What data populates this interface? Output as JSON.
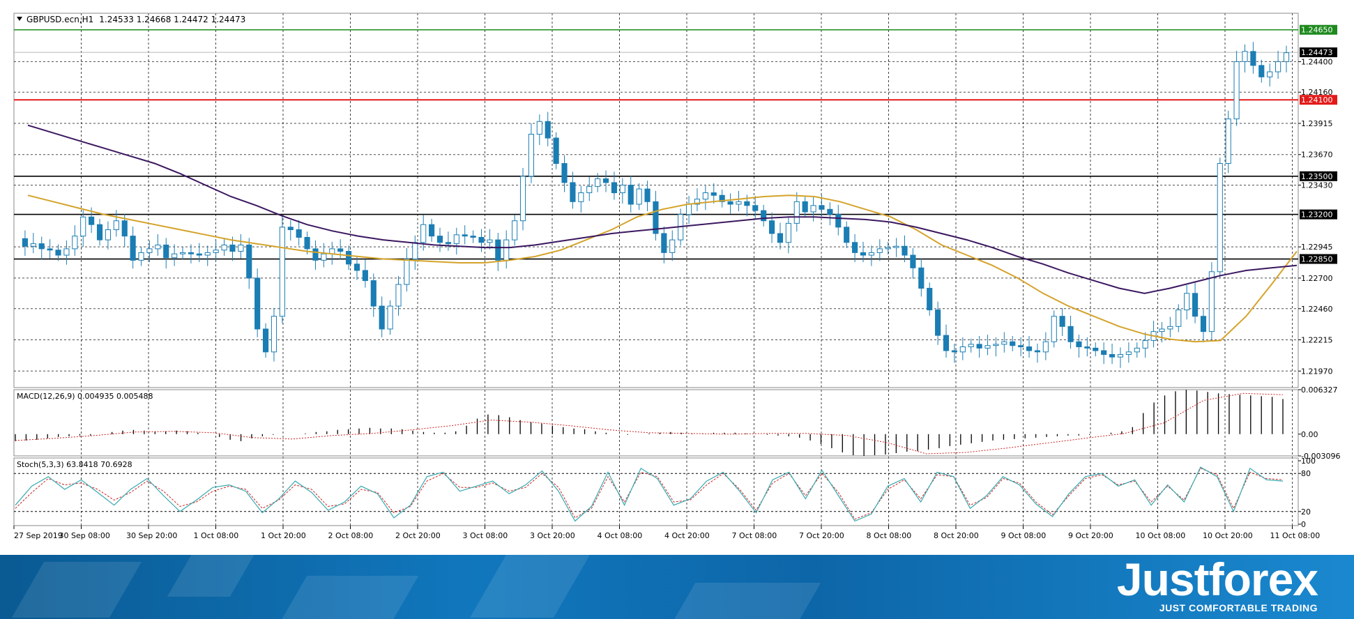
{
  "header": {
    "symbol": "GBPUSD.ecn,H1",
    "ohlc": "1.24533 1.24668 1.24472 1.24473"
  },
  "macd": {
    "label": "MACD(12,26,9) 0.004935 0.005488"
  },
  "stoch": {
    "label": "Stoch(5,3,3) 63.8418 70.6928"
  },
  "brand": {
    "name": "Justforex",
    "tagline": "JUST COMFORTABLE TRADING"
  },
  "colors": {
    "candle": "#1a7db3",
    "ma_fast": "#d4a32a",
    "ma_slow": "#3b1760",
    "hline": "#000000",
    "resistance": "#e41a1a",
    "green_line": "#1e8a1e",
    "stoch_main": "#37aab0",
    "stoch_signal": "#cc2222",
    "macd_signal": "#cc2222"
  },
  "chart_data": [
    {
      "type": "candlestick",
      "symbol": "GBPUSD",
      "timeframe": "H1",
      "price_axis": [
        "1.24400",
        "1.24160",
        "1.23915",
        "1.23670",
        "1.23430",
        "1.22945",
        "1.22700",
        "1.22460",
        "1.22215",
        "1.21970"
      ],
      "ylim": [
        1.2184,
        1.2478
      ],
      "time_axis": [
        "27 Sep 2019",
        "30 Sep 08:00",
        "30 Sep 20:00",
        "1 Oct 08:00",
        "1 Oct 20:00",
        "2 Oct 08:00",
        "2 Oct 20:00",
        "3 Oct 08:00",
        "3 Oct 20:00",
        "4 Oct 08:00",
        "4 Oct 20:00",
        "7 Oct 08:00",
        "7 Oct 20:00",
        "8 Oct 08:00",
        "8 Oct 20:00",
        "9 Oct 08:00",
        "9 Oct 20:00",
        "10 Oct 08:00",
        "10 Oct 20:00",
        "11 Oct 08:00"
      ],
      "horizontal_levels": [
        {
          "value": "1.24650",
          "price": 1.2465,
          "color": "green"
        },
        {
          "value": "1.24473",
          "price": 1.24473,
          "color": "current"
        },
        {
          "value": "1.24100",
          "price": 1.241,
          "color": "red"
        },
        {
          "value": "1.23500",
          "price": 1.235,
          "color": "black"
        },
        {
          "value": "1.23200",
          "price": 1.232,
          "color": "black"
        },
        {
          "value": "1.22850",
          "price": 1.2285,
          "color": "black"
        }
      ],
      "close_path": [
        1.2301,
        1.2295,
        1.2297,
        1.2293,
        1.2292,
        1.2288,
        1.2293,
        1.2303,
        1.2318,
        1.2312,
        1.23,
        1.2308,
        1.2315,
        1.2303,
        1.2284,
        1.229,
        1.2293,
        1.2296,
        1.2286,
        1.2289,
        1.229,
        1.2289,
        1.2288,
        1.229,
        1.2292,
        1.2296,
        1.2291,
        1.2296,
        1.227,
        1.223,
        1.2212,
        1.224,
        1.231,
        1.2308,
        1.2302,
        1.2293,
        1.2284,
        1.2289,
        1.2293,
        1.2291,
        1.2281,
        1.2276,
        1.2268,
        1.2248,
        1.223,
        1.2248,
        1.2265,
        1.2285,
        1.2298,
        1.2312,
        1.2303,
        1.2298,
        1.2297,
        1.2304,
        1.2303,
        1.2302,
        1.2298,
        1.23,
        1.2284,
        1.23,
        1.2315,
        1.235,
        1.2383,
        1.2393,
        1.238,
        1.236,
        1.2345,
        1.233,
        1.2337,
        1.2342,
        1.2348,
        1.2345,
        1.2337,
        1.2343,
        1.2328,
        1.234,
        1.233,
        1.2305,
        1.229,
        1.23,
        1.232,
        1.2328,
        1.2332,
        1.2337,
        1.2335,
        1.233,
        1.2328,
        1.233,
        1.2327,
        1.2323,
        1.2315,
        1.2305,
        1.2298,
        1.2313,
        1.233,
        1.2322,
        1.2327,
        1.2324,
        1.232,
        1.231,
        1.2298,
        1.229,
        1.2288,
        1.229,
        1.2293,
        1.2294,
        1.2295,
        1.2288,
        1.2278,
        1.2262,
        1.2245,
        1.2225,
        1.2213,
        1.2212,
        1.2216,
        1.2218,
        1.2215,
        1.2217,
        1.2218,
        1.222,
        1.2217,
        1.2216,
        1.2213,
        1.2212,
        1.222,
        1.224,
        1.2232,
        1.222,
        1.2216,
        1.2215,
        1.2213,
        1.221,
        1.2208,
        1.221,
        1.2212,
        1.2215,
        1.2221,
        1.2228,
        1.223,
        1.2232,
        1.2245,
        1.2258,
        1.224,
        1.2228,
        1.2275,
        1.236,
        1.2395,
        1.244,
        1.2448,
        1.2437,
        1.2428,
        1.2432,
        1.244,
        1.2447
      ],
      "moving_averages": [
        {
          "color": "fast",
          "path": [
            1.2335,
            1.233,
            1.2325,
            1.232,
            1.2316,
            1.2312,
            1.2308,
            1.2304,
            1.23,
            1.2297,
            1.2294,
            1.2291,
            1.2289,
            1.2287,
            1.2285,
            1.2284,
            1.2283,
            1.2282,
            1.2282,
            1.2284,
            1.2287,
            1.2292,
            1.23,
            1.2308,
            1.2318,
            1.2324,
            1.2328,
            1.233,
            1.2332,
            1.2334,
            1.2335,
            1.2334,
            1.233,
            1.2324,
            1.2318,
            1.2308,
            1.2296,
            1.2288,
            1.228,
            1.227,
            1.2258,
            1.2248,
            1.224,
            1.2232,
            1.2226,
            1.2222,
            1.222,
            1.2221,
            1.224,
            1.2265,
            1.2291
          ]
        },
        {
          "color": "slow",
          "path": [
            1.239,
            1.2384,
            1.2378,
            1.2372,
            1.2366,
            1.236,
            1.2352,
            1.2343,
            1.2334,
            1.2327,
            1.2319,
            1.2312,
            1.2307,
            1.2303,
            1.23,
            1.2298,
            1.2296,
            1.2295,
            1.2294,
            1.2294,
            1.2296,
            1.2299,
            1.2302,
            1.2305,
            1.2307,
            1.2309,
            1.2311,
            1.2313,
            1.2315,
            1.2317,
            1.2318,
            1.2318,
            1.2317,
            1.2316,
            1.2314,
            1.231,
            1.2305,
            1.23,
            1.2294,
            1.2287,
            1.2281,
            1.2274,
            1.2268,
            1.2262,
            1.2258,
            1.2262,
            1.2267,
            1.2272,
            1.2276,
            1.2278,
            1.228
          ]
        }
      ]
    },
    {
      "type": "bar",
      "name": "MACD(12,26,9)",
      "axis_labels": [
        "0.006327",
        "0.00",
        "-0.003096"
      ],
      "ylim": [
        -0.003096,
        0.006327
      ],
      "values": [
        -0.001,
        -0.0009,
        -0.0008,
        -0.0006,
        -0.0004,
        -0.0003,
        -0.0002,
        -0.0002,
        0.0,
        0.0003,
        0.0005,
        0.0006,
        0.0005,
        0.0004,
        0.0004,
        0.0005,
        0.0004,
        0.0002,
        0.0,
        -0.0004,
        -0.0008,
        -0.001,
        -0.0006,
        -0.0003,
        -0.0001,
        0.0,
        0.0,
        0.0001,
        0.0003,
        0.0004,
        0.0006,
        0.0007,
        0.0008,
        0.0009,
        0.0008,
        0.0008,
        0.0007,
        0.0005,
        0.0003,
        0.0002,
        0.0002,
        0.0004,
        0.0012,
        0.0022,
        0.0028,
        0.0027,
        0.0024,
        0.002,
        0.0017,
        0.0015,
        0.0012,
        0.001,
        0.0008,
        0.0007,
        0.0004,
        0.0002,
        0.0,
        -0.0001,
        0.0,
        0.0001,
        0.0002,
        0.0003,
        0.0002,
        0.0001,
        0.0001,
        0.0002,
        0.0002,
        0.0002,
        0.0001,
        0.0,
        -0.0001,
        -0.0002,
        -0.0003,
        -0.0005,
        -0.0009,
        -0.0014,
        -0.002,
        -0.0026,
        -0.003,
        -0.0031,
        -0.003,
        -0.0029,
        -0.0027,
        -0.0025,
        -0.0024,
        -0.0022,
        -0.002,
        -0.0017,
        -0.0015,
        -0.0013,
        -0.0011,
        -0.0009,
        -0.0008,
        -0.0007,
        -0.0006,
        -0.0005,
        -0.0004,
        -0.0003,
        -0.0002,
        -0.0002,
        -0.0001,
        0.0,
        0.0002,
        0.0004,
        0.001,
        0.003,
        0.0045,
        0.0055,
        0.0061,
        0.0063,
        0.0062,
        0.006,
        0.0058,
        0.0057,
        0.0056,
        0.0055,
        0.0054,
        0.0053,
        0.005
      ],
      "signal_path": [
        -0.0009,
        -0.0006,
        -0.0002,
        0.0003,
        0.0004,
        0.0002,
        -0.0005,
        -0.0007,
        -0.0002,
        0.0001,
        0.0006,
        0.0012,
        0.002,
        0.0017,
        0.0012,
        0.0006,
        0.0002,
        0.0001,
        0.0,
        0.0001,
        0.0001,
        -0.0002,
        -0.0012,
        -0.0028,
        -0.0026,
        -0.002,
        -0.0013,
        -0.0006,
        0.0001,
        0.0016,
        0.0048,
        0.0058,
        0.0056
      ]
    },
    {
      "type": "line",
      "name": "Stoch(5,3,3)",
      "axis_labels": [
        "100",
        "80",
        "20",
        "0"
      ],
      "ylim": [
        0,
        100
      ],
      "levels": [
        80,
        20
      ],
      "main": [
        30,
        60,
        75,
        55,
        70,
        50,
        30,
        55,
        72,
        45,
        20,
        38,
        58,
        62,
        52,
        18,
        40,
        68,
        50,
        22,
        35,
        60,
        48,
        10,
        30,
        75,
        82,
        52,
        60,
        68,
        48,
        62,
        84,
        52,
        5,
        28,
        82,
        30,
        88,
        72,
        30,
        40,
        68,
        82,
        52,
        18,
        70,
        82,
        40,
        85,
        45,
        5,
        16,
        60,
        72,
        35,
        82,
        75,
        25,
        45,
        75,
        62,
        32,
        12,
        48,
        75,
        80,
        60,
        70,
        30,
        62,
        35,
        90,
        75,
        20,
        88,
        70,
        68
      ],
      "signal": [
        25,
        50,
        72,
        62,
        65,
        55,
        38,
        50,
        68,
        52,
        28,
        35,
        52,
        60,
        55,
        25,
        38,
        62,
        55,
        28,
        32,
        55,
        50,
        18,
        28,
        68,
        80,
        58,
        58,
        65,
        52,
        58,
        80,
        58,
        10,
        25,
        75,
        35,
        82,
        75,
        35,
        38,
        62,
        80,
        55,
        22,
        65,
        80,
        45,
        80,
        50,
        8,
        18,
        55,
        70,
        40,
        78,
        75,
        30,
        42,
        72,
        65,
        35,
        15,
        45,
        72,
        78,
        62,
        68,
        35,
        60,
        38,
        88,
        78,
        25,
        82,
        72,
        70
      ]
    }
  ]
}
